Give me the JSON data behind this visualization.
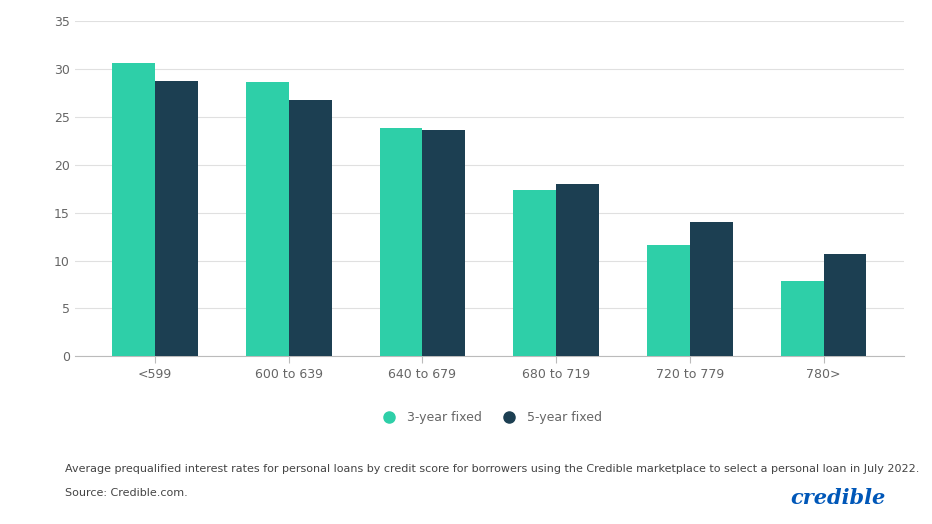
{
  "categories": [
    "<599",
    "600 to 639",
    "640 to 679",
    "680 to 719",
    "720 to 779",
    "780>"
  ],
  "three_year_fixed": [
    30.6,
    28.6,
    23.8,
    17.4,
    11.6,
    7.9
  ],
  "five_year_fixed": [
    28.7,
    26.8,
    23.6,
    18.0,
    14.0,
    10.7
  ],
  "color_3year": "#2ecfa8",
  "color_5year": "#1c3f52",
  "ylim": [
    0,
    35
  ],
  "yticks": [
    0,
    5,
    10,
    15,
    20,
    25,
    30,
    35
  ],
  "legend_label_3year": "3-year fixed",
  "legend_label_5year": "5-year fixed",
  "footnote_line1": "Average prequalified interest rates for personal loans by credit score for borrowers using the Credible marketplace to select a personal loan in July 2022.",
  "footnote_line2": "Source: Credible.com.",
  "brand_text": "credible",
  "brand_color": "#0057b8",
  "background_color": "#ffffff",
  "bar_width": 0.32,
  "grid_color": "#e0e0e0",
  "axis_color": "#bbbbbb",
  "tick_color": "#666666",
  "footnote_fontsize": 8.0,
  "brand_fontsize": 15,
  "legend_fontsize": 9,
  "ytick_fontsize": 9,
  "xtick_fontsize": 9
}
